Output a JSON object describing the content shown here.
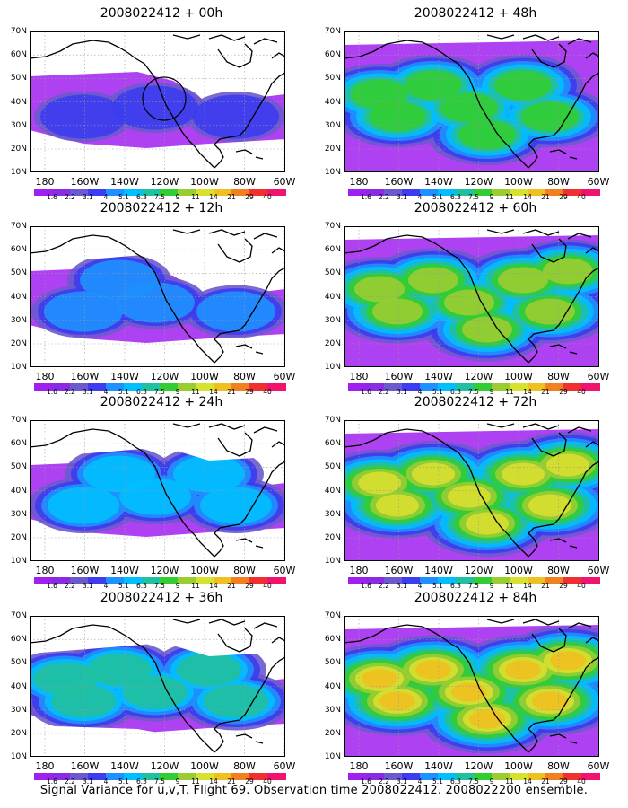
{
  "panels": [
    {
      "title": "2008022412 + 00h",
      "level": 0
    },
    {
      "title": "2008022412 + 48h",
      "level": 4
    },
    {
      "title": "2008022412 + 12h",
      "level": 1
    },
    {
      "title": "2008022412 + 60h",
      "level": 5
    },
    {
      "title": "2008022412 + 24h",
      "level": 2
    },
    {
      "title": "2008022412 + 72h",
      "level": 6
    },
    {
      "title": "2008022412 + 36h",
      "level": 3
    },
    {
      "title": "2008022412 + 84h",
      "level": 7
    }
  ],
  "lat_labels": [
    "70N",
    "60N",
    "50N",
    "40N",
    "30N",
    "20N",
    "10N"
  ],
  "lon_labels": [
    "180",
    "160W",
    "140W",
    "120W",
    "100W",
    "80W",
    "60W"
  ],
  "colorbar": {
    "labels": [
      "1.6",
      "2.2",
      "3.1",
      "4",
      "5.1",
      "6.3",
      "7.5",
      "9",
      "11",
      "14",
      "21",
      "29",
      "40"
    ],
    "colors": [
      "#a020f0",
      "#8a2be2",
      "#6a5acd",
      "#3c3cf0",
      "#1e90ff",
      "#00bfff",
      "#20c0a0",
      "#32cd32",
      "#9acd32",
      "#d8e030",
      "#f0c020",
      "#f08020",
      "#f03030",
      "#f0146e"
    ]
  },
  "footer": "Signal Variance for u,v,T. Flight 69. Observation time 2008022412. 2008022200 ensemble."
}
